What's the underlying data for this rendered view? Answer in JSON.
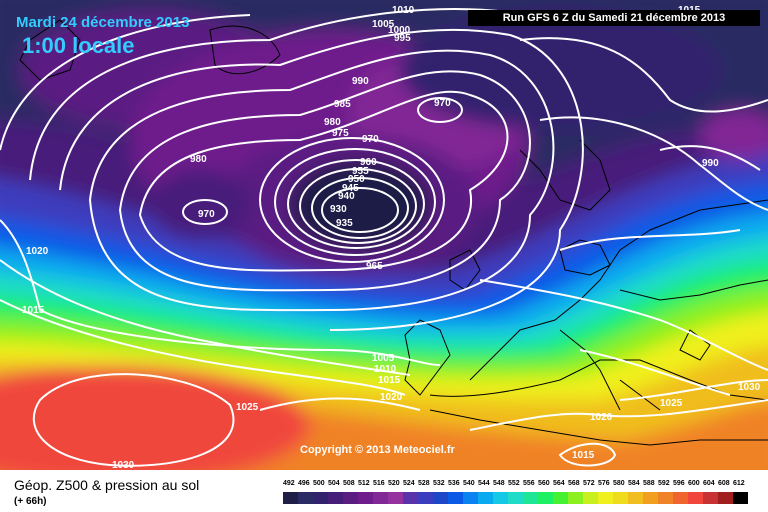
{
  "header": {
    "date": "Mardi 24 décembre 2013",
    "time": "1:00 locale",
    "run": "Run GFS 6 Z du Samedi 21 décembre 2013"
  },
  "footer": {
    "product": "Géop. Z500 & pression au sol",
    "step": "(+ 66h)",
    "copyright": "Copyright © 2013 Meteociel.fr"
  },
  "legend": {
    "labels": [
      "492",
      "496",
      "500",
      "504",
      "508",
      "512",
      "516",
      "520",
      "524",
      "528",
      "532",
      "536",
      "540",
      "544",
      "548",
      "552",
      "556",
      "560",
      "564",
      "568",
      "572",
      "576",
      "580",
      "584",
      "588",
      "592",
      "596",
      "600",
      "604",
      "608",
      "612"
    ],
    "colors": [
      "#1e1e46",
      "#2a2a64",
      "#32226e",
      "#461e7a",
      "#5a1e82",
      "#6e1e8c",
      "#822896",
      "#9632a0",
      "#5a32aa",
      "#3c3cbe",
      "#1e46c8",
      "#0a5ae6",
      "#0a82f0",
      "#0aaaf0",
      "#14c8e6",
      "#1edcc8",
      "#1ee696",
      "#1ef064",
      "#46f032",
      "#8cf01e",
      "#c8f01e",
      "#f0f01e",
      "#f0dc1e",
      "#f0be1e",
      "#f0a01e",
      "#f08228",
      "#f0642d",
      "#f0463c",
      "#c83232",
      "#a01e1e",
      "#000000"
    ]
  },
  "pressure_labels": [
    "1010",
    "1005",
    "1000",
    "995",
    "990",
    "985",
    "980",
    "975",
    "970",
    "970",
    "980",
    "970",
    "965",
    "960",
    "955",
    "950",
    "945",
    "940",
    "935",
    "930",
    "990",
    "1020",
    "1015",
    "1005",
    "1010",
    "1015",
    "1020",
    "1025",
    "1030",
    "1025",
    "1030",
    "1020",
    "1015",
    "1015"
  ],
  "colors": {
    "lows": "#000000",
    "isobar": "#ffffff",
    "title": "#33ccff"
  }
}
